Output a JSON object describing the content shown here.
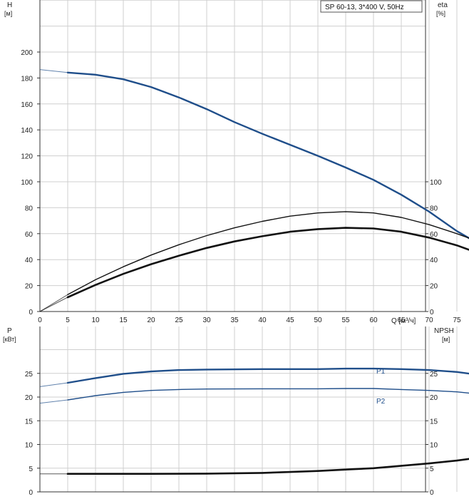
{
  "chart_data": [
    {
      "type": "line",
      "title": "SP 60-13, 3*400 V, 50Hz",
      "y_left_label": "H",
      "y_left_unit": "[м]",
      "y_right_label": "eta",
      "y_right_unit": "[%]",
      "xlabel": "Q [м³/ч]",
      "xlim": [
        0,
        80
      ],
      "x_ticks": [
        0,
        5,
        10,
        15,
        20,
        25,
        30,
        35,
        40,
        45,
        50,
        55,
        60,
        65,
        70,
        75
      ],
      "ylim": [
        0,
        220
      ],
      "y_left_ticks": [
        0,
        20,
        40,
        60,
        80,
        100,
        120,
        140,
        160,
        180,
        200
      ],
      "y_right_ticks": [
        0,
        20,
        40,
        60,
        80,
        100
      ],
      "grid": true,
      "series": [
        {
          "role": "head",
          "color": "#1f4e8a",
          "extrapolated": [
            [
              0,
              186.5
            ],
            [
              5,
              184.2
            ]
          ],
          "points": [
            [
              5,
              184.2
            ],
            [
              10,
              182.5
            ],
            [
              15,
              179
            ],
            [
              20,
              173
            ],
            [
              25,
              165
            ],
            [
              30,
              156
            ],
            [
              35,
              146
            ],
            [
              40,
              137
            ],
            [
              45,
              128.5
            ],
            [
              50,
              120
            ],
            [
              55,
              111
            ],
            [
              60,
              101.5
            ],
            [
              65,
              90
            ],
            [
              70,
              77
            ],
            [
              75,
              62
            ],
            [
              78.2,
              54
            ]
          ]
        },
        {
          "role": "efficiency-pump",
          "color": "#111111",
          "extrapolated": [
            [
              0,
              0
            ],
            [
              5,
              13
            ]
          ],
          "points": [
            [
              5,
              13
            ],
            [
              10,
              24.5
            ],
            [
              15,
              34.5
            ],
            [
              20,
              43.5
            ],
            [
              25,
              51.5
            ],
            [
              30,
              58.5
            ],
            [
              35,
              64.5
            ],
            [
              40,
              69.5
            ],
            [
              45,
              73.5
            ],
            [
              50,
              76
            ],
            [
              55,
              77
            ],
            [
              60,
              76
            ],
            [
              65,
              72.5
            ],
            [
              70,
              67
            ],
            [
              75,
              60
            ],
            [
              78.2,
              55
            ]
          ]
        },
        {
          "role": "efficiency-total",
          "color": "#111111",
          "extrapolated": [
            [
              0,
              0
            ],
            [
              5,
              11
            ]
          ],
          "points": [
            [
              5,
              11
            ],
            [
              10,
              20.5
            ],
            [
              15,
              29
            ],
            [
              20,
              36.5
            ],
            [
              25,
              43
            ],
            [
              30,
              49
            ],
            [
              35,
              54
            ],
            [
              40,
              58
            ],
            [
              45,
              61.5
            ],
            [
              50,
              63.5
            ],
            [
              55,
              64.5
            ],
            [
              60,
              64
            ],
            [
              65,
              61.5
            ],
            [
              70,
              57
            ],
            [
              75,
              51
            ],
            [
              78.2,
              46
            ]
          ]
        }
      ]
    },
    {
      "type": "line",
      "y_left_label": "P",
      "y_left_unit": "[кВт]",
      "y_right_label": "NPSH",
      "y_right_unit": "[м]",
      "xlim": [
        0,
        80
      ],
      "ylim": [
        0,
        30
      ],
      "y_left_ticks": [
        0,
        5,
        10,
        15,
        20,
        25
      ],
      "y_right_ticks": [
        0,
        5,
        10,
        15,
        20,
        25
      ],
      "grid": true,
      "series": [
        {
          "name": "P1",
          "color": "#1f4e8a",
          "extrapolated": [
            [
              0,
              22.2
            ],
            [
              5,
              23
            ]
          ],
          "points": [
            [
              5,
              23
            ],
            [
              10,
              24
            ],
            [
              15,
              24.9
            ],
            [
              20,
              25.4
            ],
            [
              25,
              25.7
            ],
            [
              30,
              25.8
            ],
            [
              40,
              25.9
            ],
            [
              50,
              25.9
            ],
            [
              55,
              26
            ],
            [
              60,
              26
            ],
            [
              65,
              25.9
            ],
            [
              70,
              25.7
            ],
            [
              75,
              25.3
            ],
            [
              78.2,
              24.8
            ]
          ]
        },
        {
          "name": "P2",
          "color": "#1f4e8a",
          "extrapolated": [
            [
              0,
              18.7
            ],
            [
              5,
              19.4
            ]
          ],
          "points": [
            [
              5,
              19.4
            ],
            [
              10,
              20.3
            ],
            [
              15,
              21
            ],
            [
              20,
              21.4
            ],
            [
              25,
              21.6
            ],
            [
              30,
              21.7
            ],
            [
              40,
              21.75
            ],
            [
              50,
              21.75
            ],
            [
              55,
              21.8
            ],
            [
              60,
              21.8
            ],
            [
              65,
              21.6
            ],
            [
              70,
              21.4
            ],
            [
              75,
              21.1
            ],
            [
              78.2,
              20.7
            ]
          ]
        },
        {
          "role": "npsh",
          "color": "#111111",
          "extrapolated": [
            [
              0,
              3.8
            ],
            [
              5,
              3.8
            ]
          ],
          "points": [
            [
              5,
              3.8
            ],
            [
              10,
              3.8
            ],
            [
              20,
              3.8
            ],
            [
              30,
              3.85
            ],
            [
              40,
              4.0
            ],
            [
              45,
              4.2
            ],
            [
              50,
              4.4
            ],
            [
              55,
              4.7
            ],
            [
              60,
              5.0
            ],
            [
              65,
              5.5
            ],
            [
              70,
              6.0
            ],
            [
              75,
              6.6
            ],
            [
              78.2,
              7.1
            ]
          ]
        }
      ]
    }
  ]
}
